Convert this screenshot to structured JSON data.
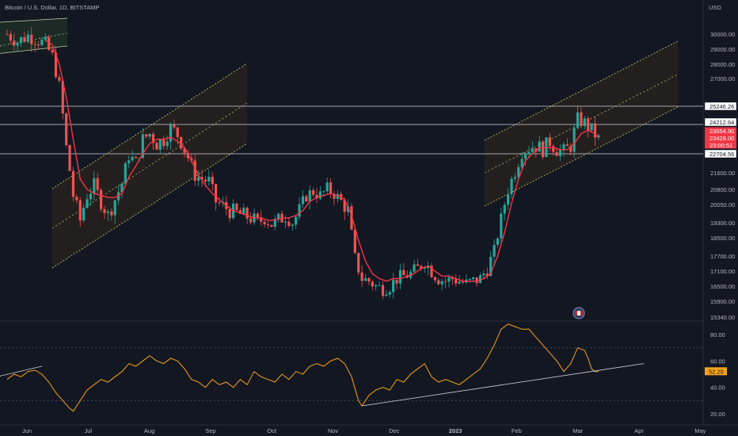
{
  "header": {
    "symbol_title": "Bitcoin / U.S. Dollar, 1D, BITSTAMP",
    "currency": "USD"
  },
  "colors": {
    "background": "#131722",
    "up_candle": "#26a69a",
    "down_candle": "#ef5350",
    "ma_line": "#f23645",
    "rsi_line": "#f7a21b",
    "channel_fill": "#3a2a1e",
    "channel_line": "#c6d36a",
    "grid": "#2a2e39",
    "axis_text": "#b2b5be"
  },
  "chart_data": [
    {
      "type": "candlestick",
      "title": "Bitcoin / U.S. Dollar, 1D, BITSTAMP",
      "y_axis_unit": "USD",
      "y_ticks": [
        30000.0,
        29000.0,
        28000.0,
        27000.0,
        25246.26,
        24212.64,
        23654.9,
        23428.0,
        22704.56,
        21600.0,
        20800.0,
        20050.0,
        19300.0,
        18500.0,
        17700.0,
        17100.0,
        16500.0,
        15900.0,
        15340.0
      ],
      "x_ticks": [
        "Jun",
        "Jul",
        "Aug",
        "Sep",
        "Oct",
        "Nov",
        "Dec",
        "2023",
        "Feb",
        "Mar",
        "Apr",
        "May"
      ],
      "price_labels": [
        {
          "value": "25246.26",
          "style": "outline"
        },
        {
          "value": "24212.64",
          "style": "outline"
        },
        {
          "value": "23654.90",
          "style": "red"
        },
        {
          "value": "23428.00",
          "style": "red"
        },
        {
          "value": "23:00:51",
          "style": "red"
        },
        {
          "value": "22704.56",
          "style": "outline"
        }
      ],
      "horizontal_levels": [
        25246.26,
        24212.64,
        22704.56
      ],
      "close_series_approx": [
        [
          0,
          30000
        ],
        [
          6,
          29500
        ],
        [
          12,
          29900
        ],
        [
          18,
          29600
        ],
        [
          22,
          29300
        ],
        [
          26,
          28500
        ],
        [
          30,
          26500
        ],
        [
          34,
          23000
        ],
        [
          38,
          20500
        ],
        [
          42,
          19400
        ],
        [
          46,
          20500
        ],
        [
          50,
          21000
        ],
        [
          54,
          20200
        ],
        [
          58,
          19600
        ],
        [
          62,
          20300
        ],
        [
          66,
          21100
        ],
        [
          70,
          22600
        ],
        [
          74,
          22200
        ],
        [
          78,
          23400
        ],
        [
          82,
          23700
        ],
        [
          86,
          23200
        ],
        [
          90,
          23400
        ],
        [
          94,
          24000
        ],
        [
          97,
          23800
        ],
        [
          100,
          23300
        ],
        [
          104,
          22500
        ],
        [
          108,
          21500
        ],
        [
          112,
          21300
        ],
        [
          116,
          21200
        ],
        [
          120,
          20200
        ],
        [
          124,
          20000
        ],
        [
          128,
          19800
        ],
        [
          132,
          19700
        ],
        [
          136,
          19600
        ],
        [
          140,
          19500
        ],
        [
          144,
          19300
        ],
        [
          148,
          19500
        ],
        [
          152,
          19200
        ],
        [
          156,
          19400
        ],
        [
          160,
          19600
        ],
        [
          164,
          19300
        ],
        [
          168,
          19800
        ],
        [
          172,
          20500
        ],
        [
          176,
          20700
        ],
        [
          180,
          20500
        ],
        [
          184,
          20800
        ],
        [
          188,
          20600
        ],
        [
          192,
          20200
        ],
        [
          196,
          19800
        ],
        [
          200,
          17600
        ],
        [
          204,
          16800
        ],
        [
          208,
          16700
        ],
        [
          212,
          16500
        ],
        [
          216,
          16400
        ],
        [
          220,
          16500
        ],
        [
          224,
          16800
        ],
        [
          228,
          16900
        ],
        [
          232,
          17000
        ],
        [
          236,
          17200
        ],
        [
          240,
          17500
        ],
        [
          244,
          17100
        ],
        [
          248,
          16800
        ],
        [
          252,
          16700
        ],
        [
          256,
          16800
        ],
        [
          260,
          16700
        ],
        [
          264,
          16600
        ],
        [
          268,
          16700
        ],
        [
          272,
          16800
        ],
        [
          276,
          17200
        ],
        [
          280,
          17900
        ],
        [
          284,
          19400
        ],
        [
          288,
          20800
        ],
        [
          292,
          21700
        ],
        [
          296,
          22800
        ],
        [
          300,
          23000
        ],
        [
          304,
          23100
        ],
        [
          308,
          22900
        ],
        [
          312,
          23300
        ],
        [
          316,
          22900
        ],
        [
          320,
          22800
        ],
        [
          324,
          23100
        ],
        [
          328,
          24500
        ],
        [
          332,
          24300
        ],
        [
          336,
          23900
        ],
        [
          340,
          23400
        ]
      ],
      "ma_series_approx": [
        [
          22,
          29600
        ],
        [
          26,
          29300
        ],
        [
          30,
          28000
        ],
        [
          34,
          25800
        ],
        [
          38,
          23400
        ],
        [
          42,
          21300
        ],
        [
          46,
          20800
        ],
        [
          50,
          20600
        ],
        [
          54,
          20500
        ],
        [
          58,
          20400
        ],
        [
          62,
          20400
        ],
        [
          66,
          20600
        ],
        [
          70,
          21400
        ],
        [
          74,
          22000
        ],
        [
          78,
          22700
        ],
        [
          82,
          23200
        ],
        [
          86,
          23400
        ],
        [
          90,
          23400
        ],
        [
          94,
          23500
        ],
        [
          98,
          23300
        ],
        [
          102,
          23000
        ],
        [
          106,
          22300
        ],
        [
          110,
          21500
        ],
        [
          114,
          21000
        ],
        [
          118,
          20600
        ],
        [
          122,
          20300
        ],
        [
          126,
          20000
        ],
        [
          130,
          19800
        ],
        [
          134,
          19700
        ],
        [
          138,
          19600
        ],
        [
          142,
          19500
        ],
        [
          146,
          19500
        ],
        [
          150,
          19400
        ],
        [
          154,
          19400
        ],
        [
          158,
          19500
        ],
        [
          162,
          19500
        ],
        [
          166,
          19600
        ],
        [
          170,
          19800
        ],
        [
          174,
          20200
        ],
        [
          178,
          20400
        ],
        [
          182,
          20500
        ],
        [
          186,
          20600
        ],
        [
          190,
          20500
        ],
        [
          194,
          20300
        ],
        [
          198,
          19600
        ],
        [
          202,
          18400
        ],
        [
          206,
          17500
        ],
        [
          210,
          17000
        ],
        [
          214,
          16800
        ],
        [
          218,
          16700
        ],
        [
          222,
          16800
        ],
        [
          226,
          16800
        ],
        [
          230,
          16900
        ],
        [
          234,
          17000
        ],
        [
          238,
          17200
        ],
        [
          242,
          17300
        ],
        [
          246,
          17100
        ],
        [
          250,
          16900
        ],
        [
          254,
          16900
        ],
        [
          258,
          16800
        ],
        [
          262,
          16700
        ],
        [
          266,
          16700
        ],
        [
          270,
          16700
        ],
        [
          274,
          16800
        ],
        [
          278,
          17000
        ],
        [
          282,
          17700
        ],
        [
          286,
          18800
        ],
        [
          290,
          20100
        ],
        [
          294,
          21300
        ],
        [
          298,
          22300
        ],
        [
          302,
          22700
        ],
        [
          306,
          23000
        ],
        [
          310,
          23000
        ],
        [
          314,
          23000
        ],
        [
          318,
          22900
        ],
        [
          322,
          22900
        ],
        [
          326,
          23200
        ],
        [
          330,
          23700
        ],
        [
          334,
          23900
        ],
        [
          338,
          23700
        ],
        [
          340,
          23500
        ]
      ],
      "channels": [
        {
          "name": "top-left channel",
          "start_day": 0,
          "end_day": 30
        },
        {
          "name": "summer channel",
          "start_day": 36,
          "end_day": 106
        },
        {
          "name": "2023 channel",
          "start_day": 308,
          "end_day": 406
        }
      ],
      "grid": false
    },
    {
      "type": "line",
      "title": "",
      "y_ticks": [
        80.0,
        60.0,
        40.0,
        20.0
      ],
      "current_value_label": "52.20",
      "levels": [
        70,
        30
      ],
      "rsi_series_approx": [
        [
          0,
          46
        ],
        [
          4,
          50
        ],
        [
          8,
          48
        ],
        [
          12,
          52
        ],
        [
          16,
          53
        ],
        [
          20,
          50
        ],
        [
          24,
          44
        ],
        [
          28,
          36
        ],
        [
          32,
          30
        ],
        [
          36,
          24
        ],
        [
          38,
          22
        ],
        [
          42,
          30
        ],
        [
          46,
          38
        ],
        [
          50,
          42
        ],
        [
          54,
          46
        ],
        [
          58,
          44
        ],
        [
          62,
          48
        ],
        [
          66,
          52
        ],
        [
          70,
          58
        ],
        [
          74,
          56
        ],
        [
          78,
          60
        ],
        [
          82,
          64
        ],
        [
          86,
          60
        ],
        [
          90,
          58
        ],
        [
          94,
          62
        ],
        [
          98,
          60
        ],
        [
          102,
          54
        ],
        [
          106,
          46
        ],
        [
          110,
          44
        ],
        [
          114,
          40
        ],
        [
          118,
          46
        ],
        [
          122,
          42
        ],
        [
          126,
          44
        ],
        [
          130,
          40
        ],
        [
          134,
          46
        ],
        [
          138,
          42
        ],
        [
          142,
          52
        ],
        [
          146,
          48
        ],
        [
          150,
          46
        ],
        [
          154,
          44
        ],
        [
          158,
          50
        ],
        [
          162,
          46
        ],
        [
          166,
          52
        ],
        [
          170,
          50
        ],
        [
          174,
          56
        ],
        [
          178,
          58
        ],
        [
          182,
          56
        ],
        [
          186,
          60
        ],
        [
          190,
          62
        ],
        [
          194,
          58
        ],
        [
          198,
          48
        ],
        [
          202,
          30
        ],
        [
          204,
          26
        ],
        [
          208,
          34
        ],
        [
          212,
          38
        ],
        [
          216,
          40
        ],
        [
          220,
          38
        ],
        [
          224,
          46
        ],
        [
          228,
          44
        ],
        [
          232,
          50
        ],
        [
          236,
          54
        ],
        [
          240,
          58
        ],
        [
          244,
          48
        ],
        [
          248,
          44
        ],
        [
          252,
          46
        ],
        [
          256,
          44
        ],
        [
          260,
          42
        ],
        [
          264,
          46
        ],
        [
          268,
          50
        ],
        [
          272,
          54
        ],
        [
          276,
          62
        ],
        [
          280,
          72
        ],
        [
          284,
          84
        ],
        [
          288,
          88
        ],
        [
          292,
          86
        ],
        [
          296,
          84
        ],
        [
          300,
          84
        ],
        [
          304,
          78
        ],
        [
          308,
          72
        ],
        [
          312,
          66
        ],
        [
          316,
          60
        ],
        [
          320,
          52
        ],
        [
          324,
          58
        ],
        [
          328,
          70
        ],
        [
          332,
          68
        ],
        [
          334,
          62
        ],
        [
          336,
          54
        ],
        [
          338,
          52
        ],
        [
          340,
          52
        ]
      ],
      "trendlines": [
        {
          "name": "rsi-trendline-1",
          "from": [
            204,
            26
          ],
          "to": [
            366,
            58
          ]
        },
        {
          "name": "rsi-trendline-2",
          "from": [
            -6,
            48
          ],
          "to": [
            20,
            56
          ]
        }
      ]
    }
  ]
}
